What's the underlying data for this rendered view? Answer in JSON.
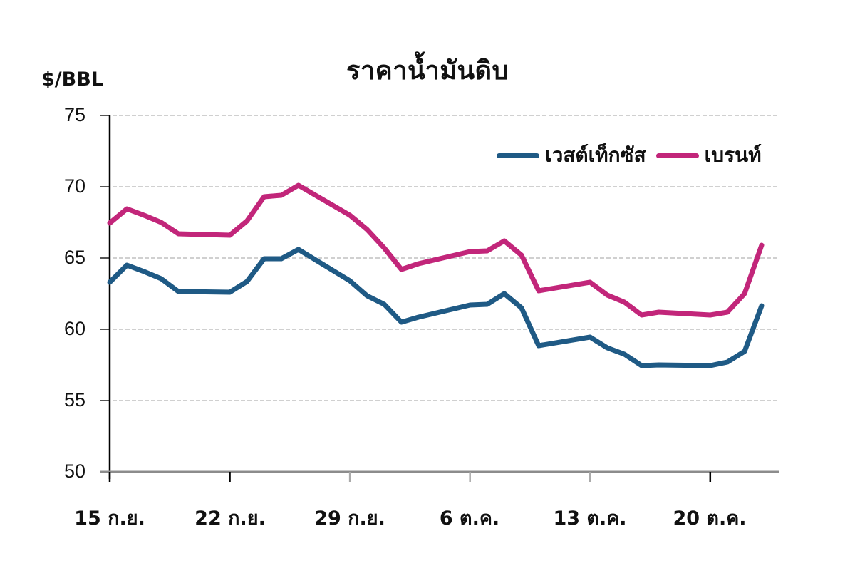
{
  "chart_data": {
    "type": "line",
    "title": "ราคาน้ำมันดิบ",
    "ylabel": "$/BBL",
    "xlabel": "",
    "ylim": [
      50,
      75
    ],
    "yticks": [
      50,
      55,
      60,
      65,
      70,
      75
    ],
    "grid": true,
    "legend_position": "top-right",
    "x_tick_labels": [
      "15 ก.ย.",
      "22 ก.ย.",
      "29 ก.ย.",
      "6 ต.ค.",
      "13 ต.ค.",
      "20 ต.ค."
    ],
    "x_tick_day_offsets": [
      0,
      7,
      14,
      21,
      28,
      35
    ],
    "x_day_offsets": [
      0,
      1,
      2,
      3,
      4,
      7,
      8,
      9,
      10,
      11,
      14,
      15,
      16,
      17,
      18,
      21,
      22,
      23,
      24,
      25,
      28,
      29,
      30,
      31,
      32,
      35,
      36,
      37,
      38
    ],
    "x": [
      "15 ก.ย.",
      "16 ก.ย.",
      "17 ก.ย.",
      "18 ก.ย.",
      "19 ก.ย.",
      "22 ก.ย.",
      "23 ก.ย.",
      "24 ก.ย.",
      "25 ก.ย.",
      "26 ก.ย.",
      "29 ก.ย.",
      "30 ก.ย.",
      "1 ต.ค.",
      "2 ต.ค.",
      "3 ต.ค.",
      "6 ต.ค.",
      "7 ต.ค.",
      "8 ต.ค.",
      "9 ต.ค.",
      "10 ต.ค.",
      "13 ต.ค.",
      "14 ต.ค.",
      "15 ต.ค.",
      "16 ต.ค.",
      "17 ต.ค.",
      "20 ต.ค.",
      "21 ต.ค.",
      "22 ต.ค.",
      "23 ต.ค."
    ],
    "series": [
      {
        "name": "เวสต์เท็กซัส",
        "color": "#1f5a85",
        "values": [
          63.3,
          64.5,
          64.05,
          63.55,
          62.65,
          62.6,
          63.35,
          64.95,
          64.95,
          65.6,
          63.4,
          62.35,
          61.75,
          60.5,
          60.85,
          61.7,
          61.75,
          62.5,
          61.5,
          58.85,
          59.45,
          58.7,
          58.25,
          57.45,
          57.5,
          57.45,
          57.7,
          58.45,
          61.65
        ]
      },
      {
        "name": "เบรนท์",
        "color": "#c2267a",
        "values": [
          67.45,
          68.45,
          68.0,
          67.5,
          66.7,
          66.6,
          67.6,
          69.3,
          69.4,
          70.1,
          68.0,
          67.0,
          65.7,
          64.2,
          64.6,
          65.45,
          65.5,
          66.2,
          65.2,
          62.7,
          63.3,
          62.4,
          61.9,
          61.0,
          61.2,
          61.0,
          61.2,
          62.5,
          65.9
        ]
      }
    ]
  },
  "colors": {
    "grid": "#d0d0d0",
    "y_axis": "#000000",
    "x_axis": "#8c8c8c"
  }
}
